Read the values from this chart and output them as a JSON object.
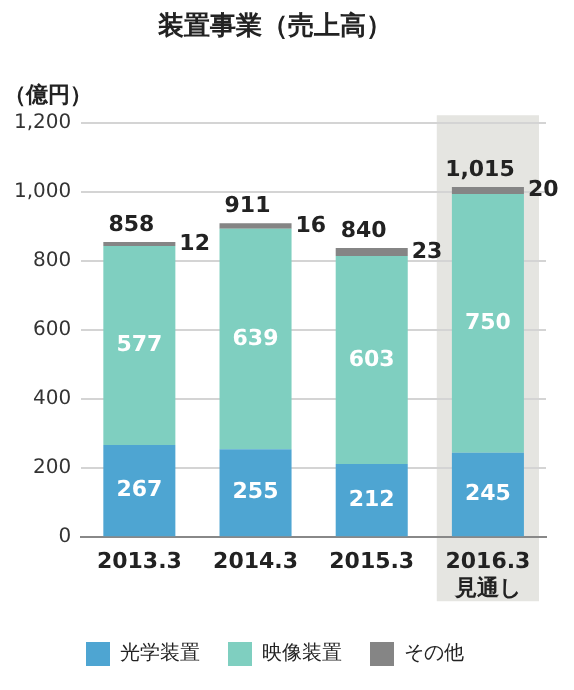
{
  "chart_data": {
    "type": "bar",
    "title": "装置事業（売上高）",
    "ylabel": "（億円）",
    "categories": [
      "2013.3",
      "2014.3",
      "2015.3",
      "2016.3\n見通し"
    ],
    "series": [
      {
        "name": "光学装置",
        "color": "#4ea5d2",
        "values": [
          267,
          255,
          212,
          245
        ]
      },
      {
        "name": "映像装置",
        "color": "#7fcfc0",
        "values": [
          577,
          639,
          603,
          750
        ]
      },
      {
        "name": "その他",
        "color": "#858585",
        "values": [
          12,
          16,
          23,
          20
        ]
      }
    ],
    "stacked": true,
    "data_labels": true,
    "totals": [
      "858",
      "911",
      "840",
      "1,015"
    ],
    "bands": [
      {
        "axis": "x",
        "from": "2016.3\n見通し",
        "to": "2016.3\n見通し",
        "color": "#e5e5e1"
      }
    ],
    "ylim": [
      0,
      1200
    ],
    "yticks": [
      0,
      200,
      400,
      600,
      800,
      {
        "value": 1000,
        "label": "1,000"
      },
      {
        "value": 1200,
        "label": "1,200"
      }
    ],
    "grid": "y",
    "legend": "bottom"
  }
}
